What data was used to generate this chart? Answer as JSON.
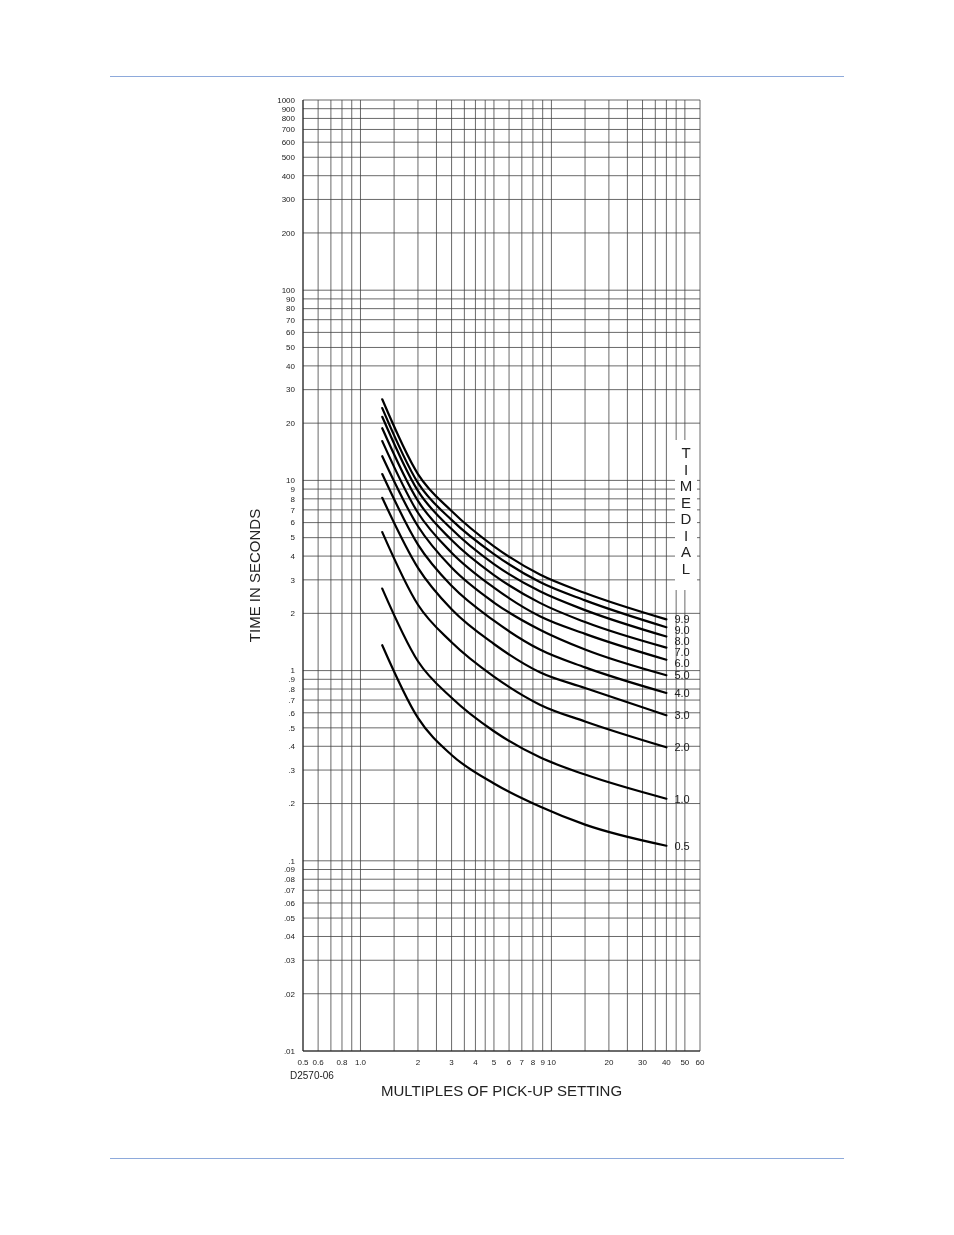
{
  "chart_data": {
    "type": "line",
    "xlabel": "MULTIPLES OF PICK-UP SETTING",
    "ylabel": "TIME IN SECONDS",
    "legend_title": "TIME DIAL",
    "annotations": [
      "D2570-06"
    ],
    "x": [
      1.3,
      2,
      3,
      5,
      8.7,
      15,
      40
    ],
    "series": [
      {
        "name": "9.9",
        "color": "#000000",
        "values": [
          26.7,
          10.8,
          6.9,
          4.5,
          3.2,
          2.56,
          1.86
        ]
      },
      {
        "name": "9.0",
        "color": "#000000",
        "values": [
          24.0,
          9.7,
          6.2,
          4.1,
          2.92,
          2.34,
          1.69
        ]
      },
      {
        "name": "8.0",
        "color": "#000000",
        "values": [
          21.6,
          8.8,
          5.55,
          3.63,
          2.61,
          2.08,
          1.51
        ]
      },
      {
        "name": "7.0",
        "color": "#000000",
        "values": [
          18.8,
          7.8,
          4.86,
          3.18,
          2.27,
          1.8,
          1.32
        ]
      },
      {
        "name": "6.0",
        "color": "#000000",
        "values": [
          16.1,
          6.76,
          4.17,
          2.73,
          1.93,
          1.56,
          1.14
        ]
      },
      {
        "name": "5.0",
        "color": "#000000",
        "values": [
          13.4,
          5.74,
          3.48,
          2.28,
          1.64,
          1.29,
          0.945
        ]
      },
      {
        "name": "4.0",
        "color": "#000000",
        "values": [
          10.8,
          4.6,
          2.79,
          1.83,
          1.29,
          1.04,
          0.763
        ]
      },
      {
        "name": "3.0",
        "color": "#000000",
        "values": [
          8.1,
          3.47,
          2.1,
          1.38,
          0.98,
          0.81,
          0.582
        ]
      },
      {
        "name": "2.0",
        "color": "#000000",
        "values": [
          5.35,
          2.22,
          1.41,
          0.93,
          0.662,
          0.54,
          0.395
        ]
      },
      {
        "name": "1.0",
        "color": "#000000",
        "values": [
          2.7,
          1.12,
          0.72,
          0.48,
          0.35,
          0.284,
          0.212
        ]
      },
      {
        "name": "0.5",
        "color": "#000000",
        "values": [
          1.36,
          0.564,
          0.36,
          0.255,
          0.193,
          0.155,
          0.12
        ]
      }
    ],
    "log": "xy",
    "xlim": [
      0.5,
      60
    ],
    "xticks": [
      0.5,
      0.6,
      {
        "value": 0.7,
        "label": null
      },
      0.8,
      {
        "value": 0.9,
        "label": null
      },
      {
        "value": 1,
        "label": "1.0"
      },
      {
        "value": 1.5,
        "label": null
      },
      2,
      {
        "value": 2.5,
        "label": null
      },
      3,
      {
        "value": 3.5,
        "label": null
      },
      4,
      {
        "value": 4.5,
        "label": null
      },
      5,
      6,
      7,
      8,
      9,
      10,
      {
        "value": 15,
        "label": null
      },
      20,
      {
        "value": 25,
        "label": null
      },
      30,
      {
        "value": 35,
        "label": null
      },
      40,
      {
        "value": 45,
        "label": null
      },
      50,
      60
    ],
    "ylim": [
      0.01,
      1000
    ],
    "yticks": [
      {
        "value": 0.01,
        "label": ".01"
      },
      {
        "value": 0.02,
        "label": ".02"
      },
      {
        "value": 0.03,
        "label": ".03"
      },
      {
        "value": 0.04,
        "label": ".04"
      },
      {
        "value": 0.05,
        "label": ".05"
      },
      {
        "value": 0.06,
        "label": ".06"
      },
      {
        "value": 0.07,
        "label": ".07"
      },
      {
        "value": 0.08,
        "label": ".08"
      },
      {
        "value": 0.09,
        "label": ".09"
      },
      {
        "value": 0.1,
        "label": ".1"
      },
      {
        "value": 0.2,
        "label": ".2"
      },
      {
        "value": 0.3,
        "label": ".3"
      },
      {
        "value": 0.4,
        "label": ".4"
      },
      {
        "value": 0.5,
        "label": ".5"
      },
      {
        "value": 0.6,
        "label": ".6"
      },
      {
        "value": 0.7,
        "label": ".7"
      },
      {
        "value": 0.8,
        "label": ".8"
      },
      {
        "value": 0.9,
        "label": ".9"
      },
      1,
      2,
      3,
      4,
      5,
      6,
      7,
      8,
      9,
      10,
      20,
      30,
      40,
      50,
      60,
      70,
      80,
      90,
      100,
      200,
      300,
      400,
      500,
      600,
      700,
      800,
      900,
      1000
    ],
    "grid": true,
    "legend": false,
    "marker": "none",
    "line_style": "solid"
  }
}
